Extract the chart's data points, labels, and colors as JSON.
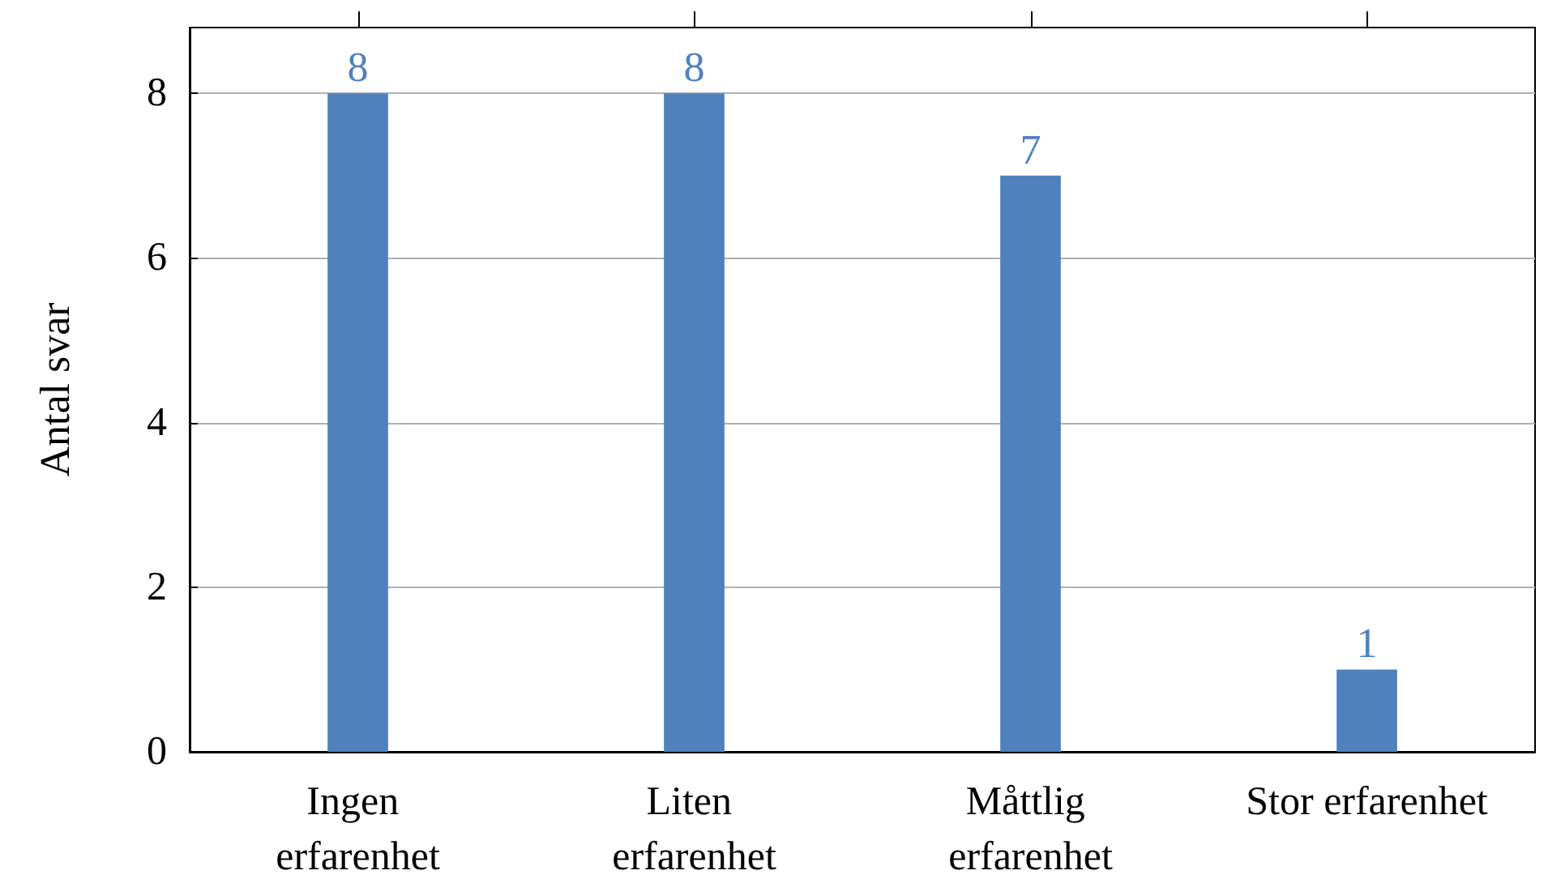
{
  "chart_data": {
    "type": "bar",
    "ylabel": "Antal svar",
    "categories": [
      "Ingen erfarenhet",
      "Liten erfarenhet",
      "Måttlig erfarenhet",
      "Stor erfarenhet"
    ],
    "values": [
      8,
      8,
      7,
      1
    ],
    "color": "#4f81bd",
    "ylim": [
      0,
      8.8
    ],
    "yticks": [
      0,
      2,
      4,
      6,
      8
    ],
    "grid": "y",
    "data_labels": true
  }
}
